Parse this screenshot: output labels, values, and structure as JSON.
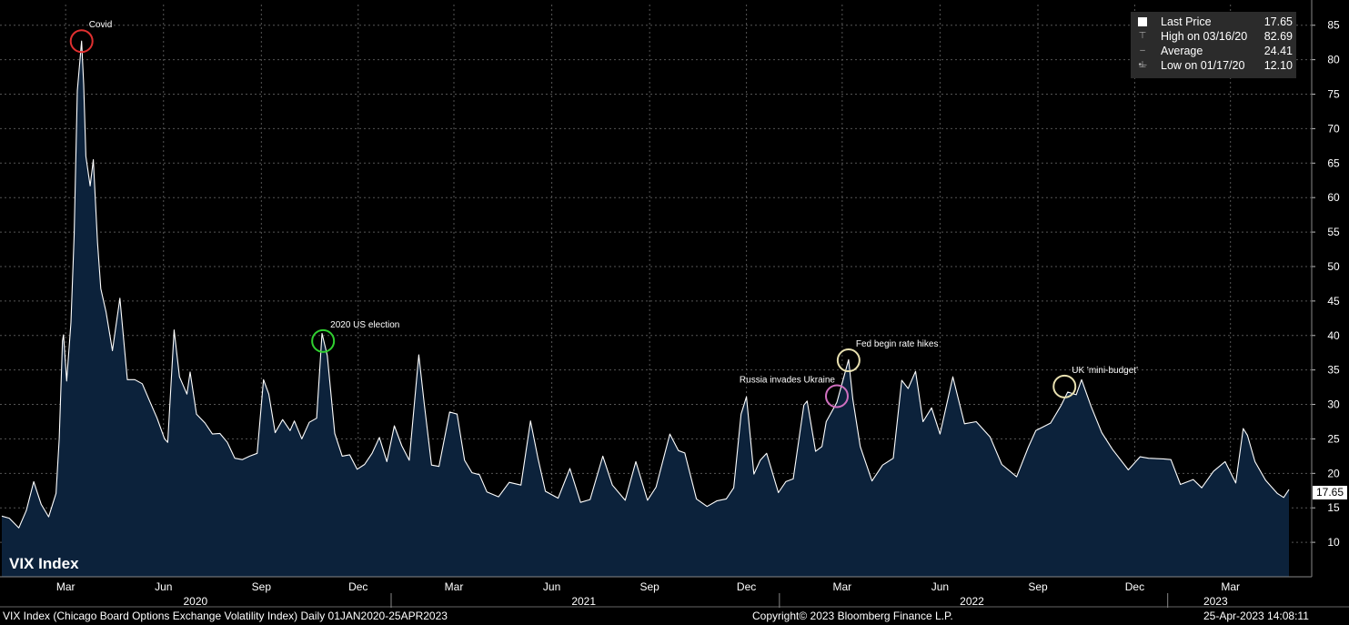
{
  "chart_data": {
    "type": "area",
    "series": [
      {
        "name": "VIX Index",
        "points": [
          [
            "2020-01-01",
            13.8
          ],
          [
            "2020-01-08",
            13.5
          ],
          [
            "2020-01-17",
            12.1
          ],
          [
            "2020-01-24",
            14.6
          ],
          [
            "2020-01-31",
            18.8
          ],
          [
            "2020-02-07",
            15.5
          ],
          [
            "2020-02-14",
            13.7
          ],
          [
            "2020-02-21",
            17.1
          ],
          [
            "2020-02-24",
            25.0
          ],
          [
            "2020-02-27",
            39.2
          ],
          [
            "2020-02-28",
            40.1
          ],
          [
            "2020-03-02",
            33.4
          ],
          [
            "2020-03-06",
            41.9
          ],
          [
            "2020-03-09",
            54.5
          ],
          [
            "2020-03-12",
            75.5
          ],
          [
            "2020-03-16",
            82.69
          ],
          [
            "2020-03-18",
            76.4
          ],
          [
            "2020-03-20",
            66.0
          ],
          [
            "2020-03-24",
            61.7
          ],
          [
            "2020-03-27",
            65.5
          ],
          [
            "2020-03-31",
            53.5
          ],
          [
            "2020-04-03",
            46.8
          ],
          [
            "2020-04-08",
            43.4
          ],
          [
            "2020-04-14",
            37.8
          ],
          [
            "2020-04-21",
            45.4
          ],
          [
            "2020-04-28",
            33.6
          ],
          [
            "2020-05-05",
            33.6
          ],
          [
            "2020-05-12",
            33.0
          ],
          [
            "2020-05-19",
            30.5
          ],
          [
            "2020-05-26",
            28.0
          ],
          [
            "2020-06-02",
            25.0
          ],
          [
            "2020-06-05",
            24.5
          ],
          [
            "2020-06-11",
            40.8
          ],
          [
            "2020-06-16",
            34.0
          ],
          [
            "2020-06-23",
            31.5
          ],
          [
            "2020-06-26",
            34.7
          ],
          [
            "2020-07-02",
            28.6
          ],
          [
            "2020-07-10",
            27.3
          ],
          [
            "2020-07-17",
            25.7
          ],
          [
            "2020-07-24",
            25.8
          ],
          [
            "2020-07-31",
            24.5
          ],
          [
            "2020-08-07",
            22.2
          ],
          [
            "2020-08-14",
            22.0
          ],
          [
            "2020-08-21",
            22.5
          ],
          [
            "2020-08-28",
            22.9
          ],
          [
            "2020-09-03",
            33.6
          ],
          [
            "2020-09-08",
            31.5
          ],
          [
            "2020-09-14",
            25.9
          ],
          [
            "2020-09-21",
            27.8
          ],
          [
            "2020-09-28",
            26.2
          ],
          [
            "2020-10-02",
            27.6
          ],
          [
            "2020-10-09",
            25.0
          ],
          [
            "2020-10-16",
            27.4
          ],
          [
            "2020-10-23",
            28.0
          ],
          [
            "2020-10-28",
            40.3
          ],
          [
            "2020-11-02",
            37.1
          ],
          [
            "2020-11-09",
            25.8
          ],
          [
            "2020-11-16",
            22.5
          ],
          [
            "2020-11-23",
            22.7
          ],
          [
            "2020-11-30",
            20.6
          ],
          [
            "2020-12-07",
            21.3
          ],
          [
            "2020-12-14",
            22.9
          ],
          [
            "2020-12-21",
            25.2
          ],
          [
            "2020-12-28",
            21.7
          ],
          [
            "2021-01-04",
            26.9
          ],
          [
            "2021-01-11",
            24.0
          ],
          [
            "2021-01-18",
            21.9
          ],
          [
            "2021-01-27",
            37.2
          ],
          [
            "2021-02-01",
            30.2
          ],
          [
            "2021-02-08",
            21.2
          ],
          [
            "2021-02-15",
            21.0
          ],
          [
            "2021-02-25",
            28.9
          ],
          [
            "2021-03-04",
            28.6
          ],
          [
            "2021-03-11",
            21.9
          ],
          [
            "2021-03-18",
            20.1
          ],
          [
            "2021-03-25",
            19.8
          ],
          [
            "2021-04-01",
            17.3
          ],
          [
            "2021-04-12",
            16.6
          ],
          [
            "2021-04-22",
            18.7
          ],
          [
            "2021-05-03",
            18.3
          ],
          [
            "2021-05-12",
            27.6
          ],
          [
            "2021-05-19",
            22.2
          ],
          [
            "2021-05-26",
            17.4
          ],
          [
            "2021-06-07",
            16.4
          ],
          [
            "2021-06-18",
            20.7
          ],
          [
            "2021-06-28",
            15.8
          ],
          [
            "2021-07-07",
            16.2
          ],
          [
            "2021-07-19",
            22.5
          ],
          [
            "2021-07-28",
            18.3
          ],
          [
            "2021-08-09",
            16.1
          ],
          [
            "2021-08-19",
            21.7
          ],
          [
            "2021-08-30",
            16.1
          ],
          [
            "2021-09-07",
            18.0
          ],
          [
            "2021-09-20",
            25.7
          ],
          [
            "2021-09-28",
            23.3
          ],
          [
            "2021-10-04",
            22.96
          ],
          [
            "2021-10-15",
            16.3
          ],
          [
            "2021-10-25",
            15.2
          ],
          [
            "2021-11-03",
            16.0
          ],
          [
            "2021-11-12",
            16.3
          ],
          [
            "2021-11-19",
            17.9
          ],
          [
            "2021-11-26",
            28.6
          ],
          [
            "2021-12-01",
            31.1
          ],
          [
            "2021-12-08",
            19.9
          ],
          [
            "2021-12-14",
            21.9
          ],
          [
            "2021-12-20",
            22.9
          ],
          [
            "2021-12-31",
            17.2
          ],
          [
            "2022-01-07",
            18.8
          ],
          [
            "2022-01-14",
            19.2
          ],
          [
            "2022-01-24",
            29.9
          ],
          [
            "2022-01-27",
            30.5
          ],
          [
            "2022-02-04",
            23.2
          ],
          [
            "2022-02-10",
            23.9
          ],
          [
            "2022-02-14",
            27.5
          ],
          [
            "2022-02-24",
            30.3
          ],
          [
            "2022-03-07",
            36.5
          ],
          [
            "2022-03-11",
            30.8
          ],
          [
            "2022-03-18",
            23.9
          ],
          [
            "2022-03-29",
            18.9
          ],
          [
            "2022-04-08",
            21.2
          ],
          [
            "2022-04-18",
            22.2
          ],
          [
            "2022-04-26",
            33.5
          ],
          [
            "2022-05-02",
            32.3
          ],
          [
            "2022-05-09",
            34.8
          ],
          [
            "2022-05-16",
            27.5
          ],
          [
            "2022-05-24",
            29.5
          ],
          [
            "2022-06-01",
            25.7
          ],
          [
            "2022-06-13",
            34.0
          ],
          [
            "2022-06-24",
            27.2
          ],
          [
            "2022-07-05",
            27.5
          ],
          [
            "2022-07-18",
            25.3
          ],
          [
            "2022-07-29",
            21.3
          ],
          [
            "2022-08-12",
            19.5
          ],
          [
            "2022-08-23",
            23.8
          ],
          [
            "2022-08-30",
            26.2
          ],
          [
            "2022-09-13",
            27.3
          ],
          [
            "2022-09-23",
            29.9
          ],
          [
            "2022-09-29",
            31.8
          ],
          [
            "2022-10-07",
            31.4
          ],
          [
            "2022-10-12",
            33.6
          ],
          [
            "2022-10-21",
            29.7
          ],
          [
            "2022-10-31",
            25.9
          ],
          [
            "2022-11-10",
            23.5
          ],
          [
            "2022-11-25",
            20.5
          ],
          [
            "2022-12-06",
            22.4
          ],
          [
            "2022-12-14",
            22.2
          ],
          [
            "2022-12-28",
            22.1
          ],
          [
            "2023-01-04",
            22.0
          ],
          [
            "2023-01-13",
            18.4
          ],
          [
            "2023-01-25",
            19.1
          ],
          [
            "2023-02-02",
            17.9
          ],
          [
            "2023-02-13",
            20.3
          ],
          [
            "2023-02-24",
            21.7
          ],
          [
            "2023-03-06",
            18.6
          ],
          [
            "2023-03-13",
            26.5
          ],
          [
            "2023-03-17",
            25.5
          ],
          [
            "2023-03-24",
            21.7
          ],
          [
            "2023-04-03",
            19.0
          ],
          [
            "2023-04-14",
            17.1
          ],
          [
            "2023-04-20",
            16.5
          ],
          [
            "2023-04-25",
            17.65
          ]
        ]
      }
    ],
    "x_range": [
      "2020-01-01",
      "2023-04-25"
    ],
    "ylim": [
      5,
      88
    ],
    "y_ticks": [
      10,
      15,
      20,
      25,
      30,
      35,
      40,
      45,
      50,
      55,
      60,
      65,
      70,
      75,
      80,
      85
    ],
    "x_month_labels": [
      {
        "date": "2020-03-01",
        "label": "Mar"
      },
      {
        "date": "2020-06-01",
        "label": "Jun"
      },
      {
        "date": "2020-09-01",
        "label": "Sep"
      },
      {
        "date": "2020-12-01",
        "label": "Dec"
      },
      {
        "date": "2021-03-01",
        "label": "Mar"
      },
      {
        "date": "2021-06-01",
        "label": "Jun"
      },
      {
        "date": "2021-09-01",
        "label": "Sep"
      },
      {
        "date": "2021-12-01",
        "label": "Dec"
      },
      {
        "date": "2022-03-01",
        "label": "Mar"
      },
      {
        "date": "2022-06-01",
        "label": "Jun"
      },
      {
        "date": "2022-09-01",
        "label": "Sep"
      },
      {
        "date": "2022-12-01",
        "label": "Dec"
      },
      {
        "date": "2023-03-01",
        "label": "Mar"
      }
    ],
    "x_year_labels": [
      {
        "date": "2020-07-01",
        "label": "2020"
      },
      {
        "date": "2021-07-01",
        "label": "2021"
      },
      {
        "date": "2022-07-01",
        "label": "2022"
      },
      {
        "date": "2023-02-15",
        "label": "2023"
      }
    ],
    "year_dividers": [
      "2021-01-01",
      "2022-01-01",
      "2023-01-01"
    ],
    "annotations": [
      {
        "date": "2020-03-16",
        "value": 82.69,
        "label": "Covid",
        "color": "#e03030",
        "label_pos": "right"
      },
      {
        "date": "2020-10-29",
        "value": 39.2,
        "label": "2020 US election",
        "color": "#30d030",
        "label_pos": "right"
      },
      {
        "date": "2022-02-24",
        "value": 31.2,
        "label": "Russia invades Ukraine",
        "color": "#d070c0",
        "label_pos": "left"
      },
      {
        "date": "2022-03-07",
        "value": 36.4,
        "label": "Fed begin rate hikes",
        "color": "#e8e0b0",
        "label_pos": "right"
      },
      {
        "date": "2022-09-26",
        "value": 32.6,
        "label": "UK 'mini-budget'",
        "color": "#e8e0b0",
        "label_pos": "right"
      }
    ],
    "grid": true,
    "legend_position": "top-right",
    "colors": {
      "background": "#000000",
      "area": "#0c223b",
      "line": "#ffffff",
      "grid": "#555555"
    }
  },
  "legend": {
    "rows": [
      {
        "icon": "square-icon",
        "label": "Last Price",
        "value": "17.65"
      },
      {
        "icon": "high-marker-icon",
        "label": "High on 03/16/20",
        "value": "82.69"
      },
      {
        "icon": "average-marker-icon",
        "label": "Average",
        "value": "24.41"
      },
      {
        "icon": "low-marker-icon",
        "label": "Low on 01/17/20",
        "value": "12.10"
      }
    ]
  },
  "chart_label": "VIX Index",
  "last_price_tag": "17.65",
  "footer": {
    "left": "VIX Index (Chicago Board Options Exchange Volatility Index)  Daily 01JAN2020-25APR2023",
    "center": "Copyright© 2023 Bloomberg Finance L.P.",
    "right": "25-Apr-2023 14:08:11"
  }
}
